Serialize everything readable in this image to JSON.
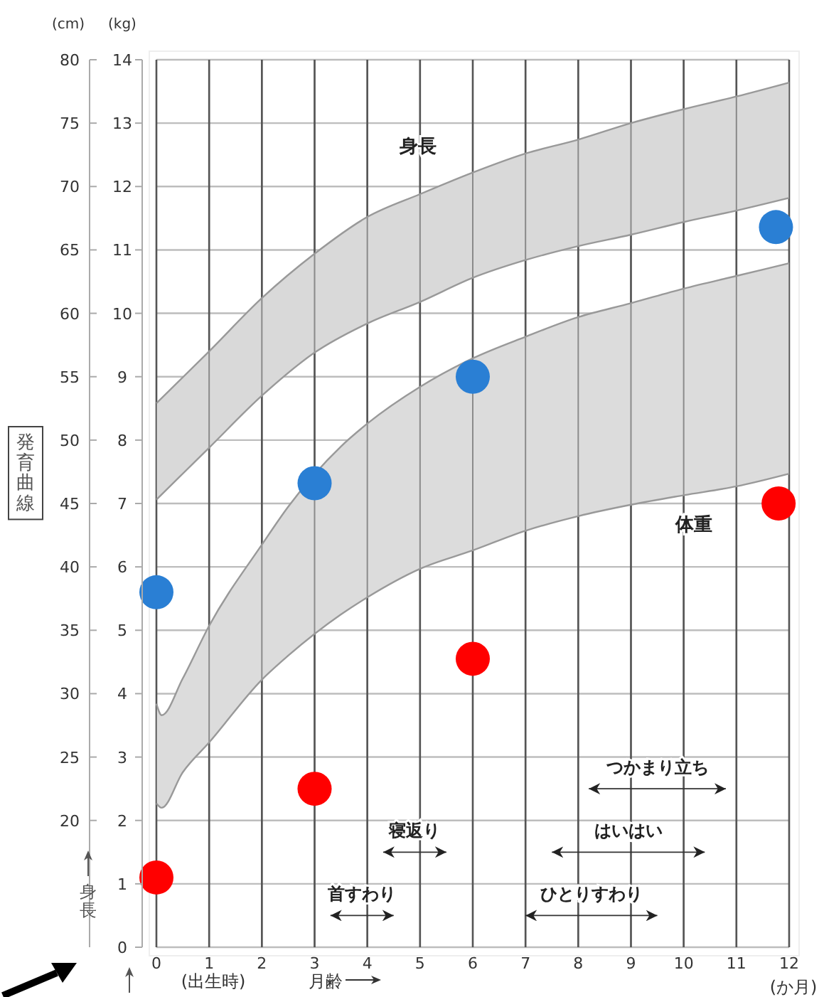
{
  "chart_data": {
    "type": "scatter",
    "title": "発育曲線",
    "xlabel": "月齢",
    "ylabel": "(kg)",
    "y2label": "(cm)",
    "xlim": [
      0,
      12
    ],
    "xticks": [
      0,
      1,
      2,
      3,
      4,
      5,
      6,
      7,
      8,
      9,
      10,
      11,
      12
    ],
    "ylim": [
      0,
      14
    ],
    "yticks": [
      0,
      1,
      2,
      3,
      4,
      5,
      6,
      7,
      8,
      9,
      10,
      11,
      12,
      13,
      14
    ],
    "y2lim": [
      10,
      80
    ],
    "y2ticks": [
      20,
      25,
      30,
      35,
      40,
      45,
      50,
      55,
      60,
      65,
      70,
      75,
      80
    ],
    "grid": true,
    "marker": "circle",
    "series": [
      {
        "type": "line",
        "axis": "y2",
        "marker": "none",
        "color": "#999999",
        "x": [
          0,
          1,
          2,
          3,
          4,
          5,
          6,
          7,
          8,
          9,
          10,
          11,
          12
        ],
        "values": [
          52.9,
          57.0,
          61.2,
          64.7,
          67.6,
          69.4,
          71.1,
          72.6,
          73.7,
          75.0,
          76.1,
          77.1,
          78.2
        ],
        "lower": [
          45.3,
          49.4,
          53.5,
          56.9,
          59.2,
          60.9,
          62.8,
          64.2,
          65.3,
          66.2,
          67.2,
          68.1,
          69.1
        ],
        "upper": [
          52.9,
          57.0,
          61.2,
          64.7,
          67.6,
          69.4,
          71.1,
          72.6,
          73.7,
          75.0,
          76.1,
          77.1,
          78.2
        ]
      },
      {
        "type": "line",
        "axis": "y2",
        "marker": "none",
        "color": "#999999",
        "x": [
          0,
          1,
          2,
          3,
          4,
          5,
          6,
          7,
          8,
          9,
          10,
          11,
          12
        ],
        "values": [
          45.3,
          49.4,
          53.5,
          56.9,
          59.2,
          60.9,
          62.8,
          64.2,
          65.3,
          66.2,
          67.2,
          68.1,
          69.1
        ]
      },
      {
        "type": "line",
        "axis": "y",
        "marker": "none",
        "color": "#999999",
        "x": [
          0,
          0.1,
          0.5,
          1,
          2,
          2.5,
          3.5,
          4,
          5,
          6,
          7,
          8,
          9,
          10,
          11,
          12
        ],
        "values": [
          3.84,
          3.66,
          4.24,
          5.07,
          6.35,
          6.95,
          7.9,
          8.26,
          8.84,
          9.29,
          9.63,
          9.94,
          10.16,
          10.39,
          10.59,
          10.79
        ],
        "lower": [
          2.27,
          2.2,
          2.76,
          3.23,
          4.22,
          4.6,
          5.25,
          5.52,
          5.97,
          6.26,
          6.57,
          6.8,
          6.98,
          7.13,
          7.27,
          7.47
        ],
        "upper": [
          3.84,
          3.66,
          4.24,
          5.07,
          6.35,
          6.95,
          7.9,
          8.26,
          8.84,
          9.29,
          9.63,
          9.94,
          10.16,
          10.39,
          10.59,
          10.79
        ]
      },
      {
        "type": "line",
        "axis": "y",
        "marker": "none",
        "color": "#999999",
        "x": [
          0,
          0.1,
          0.5,
          1,
          2,
          2.5,
          3.5,
          4,
          5,
          6,
          7,
          8,
          9,
          10,
          11,
          12
        ],
        "values": [
          2.27,
          2.2,
          2.76,
          3.23,
          4.22,
          4.6,
          5.25,
          5.52,
          5.97,
          6.26,
          6.57,
          6.8,
          6.98,
          7.13,
          7.27,
          7.47
        ]
      },
      {
        "axis": "y2",
        "color": "#2a7fd4",
        "x": [
          0,
          3,
          6,
          11.75
        ],
        "values": [
          38,
          46.6,
          55,
          66.8
        ]
      },
      {
        "axis": "y",
        "color": "#ff0000",
        "x": [
          0,
          3,
          6,
          11.8
        ],
        "values": [
          1.1,
          2.5,
          4.55,
          7.0
        ]
      },
      {
        "type": "line",
        "name": "首すわり",
        "marker": "none",
        "color": "#333333",
        "x": [
          3.3,
          4.5
        ],
        "values": [
          0.5,
          0.5
        ]
      },
      {
        "type": "line",
        "name": "ひとりすわり",
        "marker": "none",
        "color": "#333333",
        "x": [
          7.0,
          9.5
        ],
        "values": [
          0.5,
          0.5
        ]
      },
      {
        "type": "line",
        "name": "寝返り",
        "marker": "none",
        "color": "#333333",
        "x": [
          4.3,
          5.5
        ],
        "values": [
          1.5,
          1.5
        ]
      },
      {
        "type": "line",
        "name": "はいはい",
        "marker": "none",
        "color": "#333333",
        "x": [
          7.5,
          10.4
        ],
        "values": [
          1.5,
          1.5
        ]
      },
      {
        "type": "line",
        "name": "つかまり立ち",
        "marker": "none",
        "color": "#333333",
        "x": [
          8.2,
          10.8
        ],
        "values": [
          2.5,
          2.5
        ]
      }
    ],
    "annotations": [
      "身長",
      "体重",
      "(出生時)",
      "(か月)",
      "身長"
    ]
  }
}
